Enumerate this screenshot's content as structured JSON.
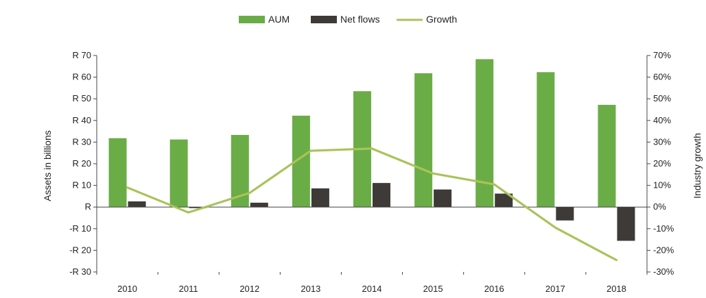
{
  "colors": {
    "aum": "#6aad46",
    "net_flows": "#3d3a37",
    "growth": "#a9c35a",
    "axis": "#444444"
  },
  "legend": [
    "AUM",
    "Net flows",
    "Growth"
  ],
  "chart_data": {
    "type": "bar",
    "title": "",
    "categories": [
      "2010",
      "2011",
      "2012",
      "2013",
      "2014",
      "2015",
      "2016",
      "2017",
      "2018"
    ],
    "series": [
      {
        "name": "AUM",
        "type": "bar",
        "axis": "left",
        "values": [
          31.8,
          31.2,
          33.3,
          42.2,
          53.5,
          61.8,
          68.3,
          62.3,
          47.2
        ]
      },
      {
        "name": "Net flows",
        "type": "bar",
        "axis": "left",
        "values": [
          2.6,
          -0.5,
          2.0,
          8.6,
          11.1,
          8.1,
          6.2,
          -6.2,
          -15.6
        ]
      },
      {
        "name": "Growth",
        "type": "line",
        "axis": "right",
        "values": [
          9,
          -2.5,
          6.5,
          26,
          27,
          15.5,
          10.5,
          -9.5,
          -24.5
        ]
      }
    ],
    "ylabel": "Assets in billions",
    "y2label": "Industry growth",
    "ylim": [
      -30,
      70
    ],
    "y2lim": [
      -30,
      70
    ],
    "yticks": [
      70,
      60,
      50,
      40,
      30,
      20,
      10,
      0,
      -10,
      -20,
      -30
    ],
    "ytick_labels": [
      "R 70",
      "R 60",
      "R 50",
      "R 40",
      "R 30",
      "R 20",
      "R 10",
      "R",
      "-R 10",
      "-R 20",
      "-R 30"
    ],
    "y2ticks": [
      70,
      60,
      50,
      40,
      30,
      20,
      10,
      0,
      -10,
      -20,
      -30
    ],
    "y2tick_labels": [
      "70%",
      "60%",
      "50%",
      "40%",
      "30%",
      "20%",
      "10%",
      "0%",
      "-10%",
      "-20%",
      "-30%"
    ],
    "legend_position": "top-center",
    "grid": false
  }
}
